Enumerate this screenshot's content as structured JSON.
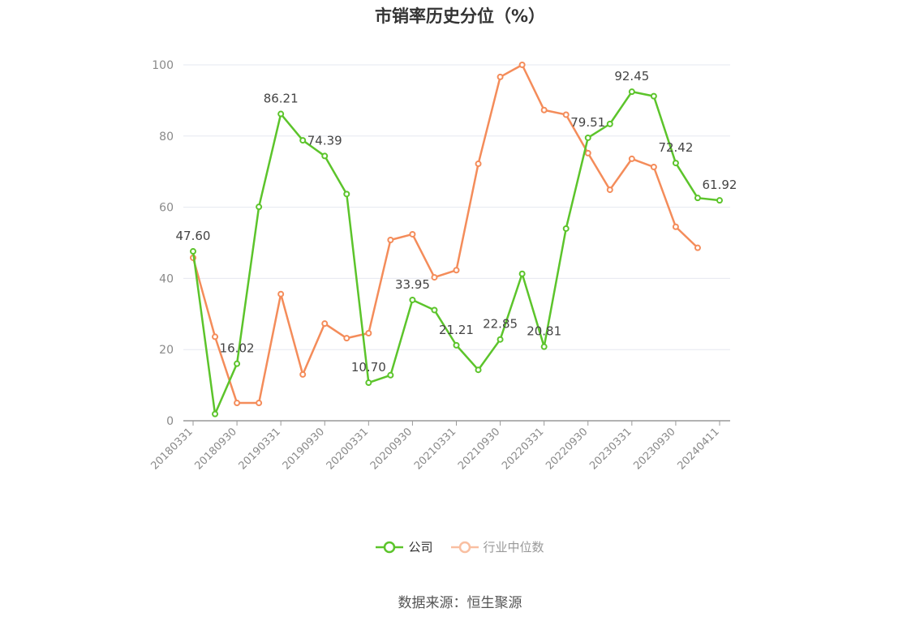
{
  "title": "市销率历史分位（%）",
  "source": "数据来源：恒生聚源",
  "colors": {
    "company": "#5cc42b",
    "industry": "#f48c5a",
    "industry_legend": "#f9bfa1",
    "grid": "#e6e8f0",
    "axis": "#999999"
  },
  "legend": [
    {
      "name": "公司",
      "color": "#5cc42b"
    },
    {
      "name": "行业中位数",
      "color": "#f9bfa1"
    }
  ],
  "chart_data": {
    "type": "line",
    "x": [
      "20180331",
      "20180630",
      "20180930",
      "20181231",
      "20190331",
      "20190630",
      "20190930",
      "20191231",
      "20200331",
      "20200630",
      "20200930",
      "20201231",
      "20210331",
      "20210630",
      "20210930",
      "20211231",
      "20220331",
      "20220630",
      "20220930",
      "20221231",
      "20230331",
      "20230630",
      "20230930",
      "20231231",
      "20240411"
    ],
    "x_tick_labels": [
      "20180331",
      "20180930",
      "20190331",
      "20190930",
      "20200331",
      "20200930",
      "20210331",
      "20210930",
      "20220331",
      "20220930",
      "20230331",
      "20230930",
      "20240411"
    ],
    "ylim": [
      0,
      100
    ],
    "y_ticks": [
      0,
      20,
      40,
      60,
      80,
      100
    ],
    "grid": true,
    "legend_position": "bottom",
    "series": [
      {
        "name": "公司",
        "values": [
          47.6,
          1.9,
          16.02,
          60.1,
          86.21,
          78.8,
          74.39,
          63.7,
          10.7,
          12.8,
          33.95,
          31.1,
          21.21,
          14.3,
          22.85,
          41.3,
          20.81,
          54.0,
          79.51,
          83.4,
          92.45,
          91.2,
          72.42,
          62.6,
          61.92
        ],
        "labels": {
          "0": "47.60",
          "2": "16.02",
          "4": "86.21",
          "6": "74.39",
          "8": "10.70",
          "10": "33.95",
          "12": "21.21",
          "14": "22.85",
          "16": "20.81",
          "18": "79.51",
          "20": "92.45",
          "22": "72.42",
          "24": "61.92"
        }
      },
      {
        "name": "行业中位数",
        "values": [
          45.8,
          23.6,
          5.0,
          5.0,
          35.6,
          13.0,
          27.3,
          23.2,
          24.6,
          50.8,
          52.4,
          40.3,
          42.3,
          72.2,
          96.6,
          100.0,
          87.3,
          86.0,
          75.2,
          64.9,
          73.6,
          71.3,
          54.5,
          48.6,
          null
        ]
      }
    ]
  }
}
